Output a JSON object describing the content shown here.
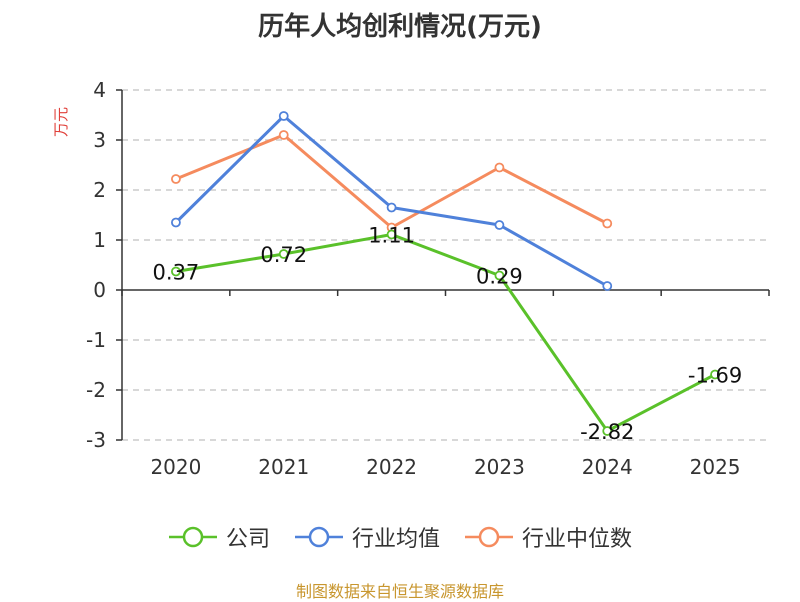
{
  "chart_data": {
    "type": "line",
    "title": "历年人均创利情况(万元)",
    "ylabel": "万元",
    "xlabel": "",
    "categories": [
      "2020",
      "2021",
      "2022",
      "2023",
      "2024",
      "2025"
    ],
    "ylim": [
      -3,
      4
    ],
    "yticks": [
      "4",
      "3",
      "2",
      "1",
      "0",
      "-1",
      "-2",
      "-3"
    ],
    "grid": true,
    "legend_position": "bottom",
    "series": [
      {
        "name": "公司",
        "color": "#5ac12a",
        "values": [
          0.37,
          0.72,
          1.11,
          0.29,
          -2.82,
          -1.69
        ],
        "labels": [
          "0.37",
          "0.72",
          "1.11",
          "0.29",
          "-2.82",
          "-1.69"
        ]
      },
      {
        "name": "行业均值",
        "color": "#4f81da",
        "values": [
          1.35,
          3.48,
          1.65,
          1.3,
          0.08,
          null
        ]
      },
      {
        "name": "行业中位数",
        "color": "#f58b5e",
        "values": [
          2.22,
          3.1,
          1.25,
          2.45,
          1.33,
          null
        ]
      }
    ]
  },
  "source": "制图数据来自恒生聚源数据库"
}
